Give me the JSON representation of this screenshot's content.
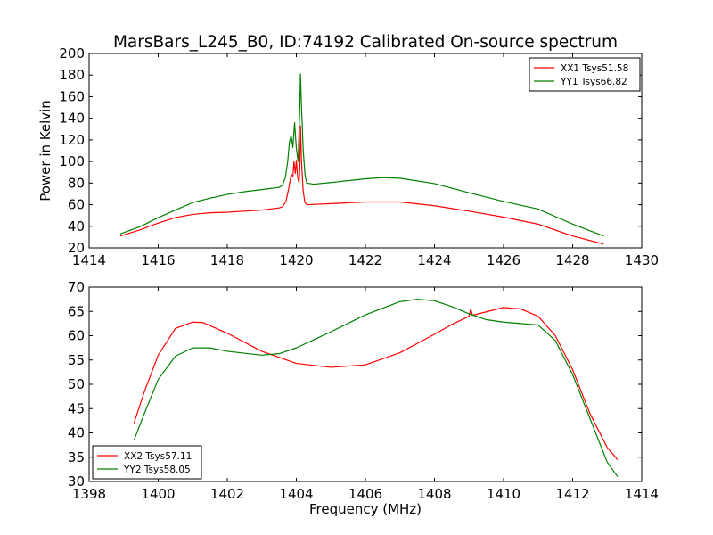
{
  "figure": {
    "title": "MarsBars_L245_B0, ID:74192 Calibrated On-source spectrum"
  },
  "chart_data": [
    {
      "type": "line",
      "title": "MarsBars_L245_B0, ID:74192 Calibrated On-source spectrum",
      "xlabel": "",
      "ylabel": "Power in Kelvin",
      "xlim": [
        1414,
        1430
      ],
      "ylim": [
        20,
        200
      ],
      "xticks": [
        1414,
        1416,
        1418,
        1420,
        1422,
        1424,
        1426,
        1428,
        1430
      ],
      "yticks": [
        20,
        40,
        60,
        80,
        100,
        120,
        140,
        160,
        180,
        200
      ],
      "legend_position": "top-right",
      "grid": false,
      "series": [
        {
          "name": "XX1 Tsys51.58",
          "color": "#ff0000",
          "points": [
            [
              1414.9,
              31
            ],
            [
              1415.5,
              37
            ],
            [
              1416,
              43
            ],
            [
              1416.5,
              48
            ],
            [
              1417,
              51
            ],
            [
              1417.5,
              52.5
            ],
            [
              1418,
              53
            ],
            [
              1418.5,
              54
            ],
            [
              1419,
              55
            ],
            [
              1419.5,
              57
            ],
            [
              1419.6,
              58
            ],
            [
              1419.7,
              63
            ],
            [
              1419.78,
              75
            ],
            [
              1419.85,
              88
            ],
            [
              1419.9,
              86
            ],
            [
              1419.93,
              100
            ],
            [
              1419.97,
              89
            ],
            [
              1420.0,
              101
            ],
            [
              1420.04,
              85
            ],
            [
              1420.08,
              80
            ],
            [
              1420.1,
              95
            ],
            [
              1420.12,
              133
            ],
            [
              1420.15,
              100
            ],
            [
              1420.18,
              82
            ],
            [
              1420.2,
              72
            ],
            [
              1420.25,
              62
            ],
            [
              1420.3,
              60
            ],
            [
              1421,
              61
            ],
            [
              1422,
              62.5
            ],
            [
              1423,
              62.5
            ],
            [
              1424,
              59
            ],
            [
              1425,
              54
            ],
            [
              1426,
              48.5
            ],
            [
              1427,
              42
            ],
            [
              1428,
              31
            ],
            [
              1428.9,
              23.5
            ]
          ]
        },
        {
          "name": "YY1 Tsys66.82",
          "color": "#008000",
          "points": [
            [
              1414.9,
              33
            ],
            [
              1415.5,
              40
            ],
            [
              1416,
              48
            ],
            [
              1416.5,
              55
            ],
            [
              1417,
              62
            ],
            [
              1417.5,
              66
            ],
            [
              1418,
              69.5
            ],
            [
              1418.5,
              72
            ],
            [
              1419,
              74
            ],
            [
              1419.5,
              76
            ],
            [
              1419.6,
              78
            ],
            [
              1419.68,
              85
            ],
            [
              1419.75,
              100
            ],
            [
              1419.8,
              118
            ],
            [
              1419.85,
              124
            ],
            [
              1419.9,
              113
            ],
            [
              1419.95,
              136
            ],
            [
              1420.0,
              112
            ],
            [
              1420.05,
              100
            ],
            [
              1420.1,
              150
            ],
            [
              1420.12,
              181
            ],
            [
              1420.15,
              150
            ],
            [
              1420.2,
              110
            ],
            [
              1420.25,
              88
            ],
            [
              1420.3,
              80
            ],
            [
              1420.5,
              79
            ],
            [
              1421,
              80.5
            ],
            [
              1422,
              84
            ],
            [
              1422.5,
              85
            ],
            [
              1423,
              84.5
            ],
            [
              1424,
              79.5
            ],
            [
              1425,
              71
            ],
            [
              1426,
              63
            ],
            [
              1427,
              56
            ],
            [
              1428,
              42
            ],
            [
              1428.9,
              31
            ]
          ]
        }
      ]
    },
    {
      "type": "line",
      "title": "",
      "xlabel": "Frequency (MHz)",
      "ylabel": "",
      "xlim": [
        1398,
        1414
      ],
      "ylim": [
        30,
        70
      ],
      "xticks": [
        1398,
        1400,
        1402,
        1404,
        1406,
        1408,
        1410,
        1412,
        1414
      ],
      "yticks": [
        30,
        35,
        40,
        45,
        50,
        55,
        60,
        65,
        70
      ],
      "legend_position": "bottom-left",
      "grid": false,
      "series": [
        {
          "name": "XX2 Tsys57.11",
          "color": "#ff0000",
          "points": [
            [
              1399.3,
              42
            ],
            [
              1399.6,
              48.5
            ],
            [
              1400,
              56
            ],
            [
              1400.5,
              61.5
            ],
            [
              1401,
              62.8
            ],
            [
              1401.3,
              62.7
            ],
            [
              1402,
              60.5
            ],
            [
              1403,
              56.8
            ],
            [
              1404,
              54.3
            ],
            [
              1405,
              53.5
            ],
            [
              1406,
              54
            ],
            [
              1407,
              56.5
            ],
            [
              1408,
              60.3
            ],
            [
              1408.5,
              62.3
            ],
            [
              1409,
              64
            ],
            [
              1409.05,
              65.5
            ],
            [
              1409.1,
              64.2
            ],
            [
              1410,
              65.8
            ],
            [
              1410.5,
              65.5
            ],
            [
              1411,
              64
            ],
            [
              1411.5,
              60
            ],
            [
              1412,
              53
            ],
            [
              1412.5,
              44
            ],
            [
              1413,
              37
            ],
            [
              1413.3,
              34.5
            ]
          ]
        },
        {
          "name": "YY2 Tsys58.05",
          "color": "#008000",
          "points": [
            [
              1399.3,
              38.5
            ],
            [
              1399.6,
              44
            ],
            [
              1400,
              51
            ],
            [
              1400.5,
              55.8
            ],
            [
              1401,
              57.5
            ],
            [
              1401.5,
              57.5
            ],
            [
              1402,
              56.8
            ],
            [
              1403,
              56
            ],
            [
              1403.5,
              56.3
            ],
            [
              1404,
              57.5
            ],
            [
              1405,
              60.8
            ],
            [
              1406,
              64.3
            ],
            [
              1407,
              67
            ],
            [
              1407.5,
              67.5
            ],
            [
              1408,
              67.2
            ],
            [
              1408.5,
              66
            ],
            [
              1409,
              64.5
            ],
            [
              1409.5,
              63.3
            ],
            [
              1410,
              62.8
            ],
            [
              1411,
              62.2
            ],
            [
              1411.5,
              59
            ],
            [
              1412,
              52
            ],
            [
              1412.5,
              43
            ],
            [
              1413,
              34
            ],
            [
              1413.3,
              31
            ]
          ]
        }
      ]
    }
  ]
}
